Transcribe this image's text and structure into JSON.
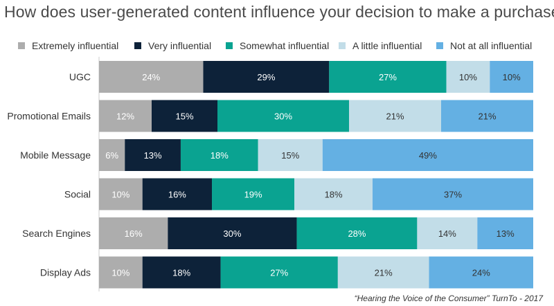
{
  "chart_data": {
    "type": "bar",
    "orientation": "horizontal",
    "stacked": true,
    "title": "How does user-generated content influence your decision to make a purchase?",
    "categories": [
      "UGC",
      "Promotional Emails",
      "Mobile Message",
      "Social",
      "Search Engines",
      "Display Ads"
    ],
    "series": [
      {
        "name": "Extremely influential",
        "color": "#adadad",
        "label_color": "#ffffff",
        "values": [
          24,
          12,
          6,
          10,
          16,
          10
        ]
      },
      {
        "name": "Very influential",
        "color": "#0d2239",
        "label_color": "#ffffff",
        "values": [
          29,
          15,
          13,
          16,
          30,
          18
        ]
      },
      {
        "name": "Somewhat influential",
        "color": "#0aa391",
        "label_color": "#ffffff",
        "values": [
          27,
          30,
          18,
          19,
          28,
          27
        ]
      },
      {
        "name": "A little influential",
        "color": "#c2dde8",
        "label_color": "#333333",
        "values": [
          10,
          21,
          15,
          18,
          14,
          21
        ]
      },
      {
        "name": "Not at all influential",
        "color": "#64b0e3",
        "label_color": "#333333",
        "values": [
          10,
          21,
          49,
          37,
          13,
          24
        ]
      }
    ],
    "legend_position": "top",
    "grid": false,
    "source": "“Hearing the Voice of the Consumer” TurnTo - 2017"
  }
}
